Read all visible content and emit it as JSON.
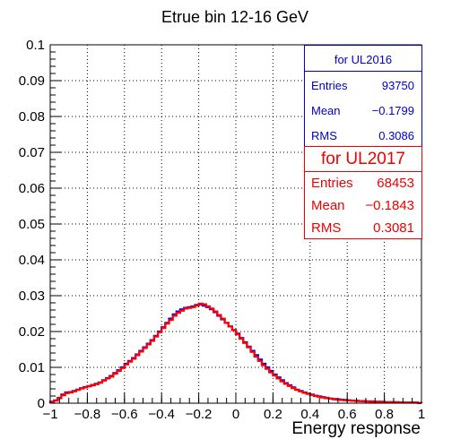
{
  "chart_data": {
    "type": "histogram",
    "title": "Etrue bin 12-16 GeV",
    "xlabel": "Energy response",
    "ylabel": "",
    "xlim": [
      -1,
      1
    ],
    "ylim": [
      0,
      0.1
    ],
    "grid": true,
    "x_ticks": [
      -1,
      -0.8,
      -0.6,
      -0.4,
      -0.2,
      0,
      0.2,
      0.4,
      0.6,
      0.8,
      1
    ],
    "x_tick_labels": [
      "−1",
      "−0.8",
      "−0.6",
      "−0.4",
      "−0.2",
      "0",
      "0.2",
      "0.4",
      "0.6",
      "0.8",
      "1"
    ],
    "y_ticks": [
      0,
      0.01,
      0.02,
      0.03,
      0.04,
      0.05,
      0.06,
      0.07,
      0.08,
      0.09,
      0.1
    ],
    "y_tick_labels": [
      "0",
      "0.01",
      "0.02",
      "0.03",
      "0.04",
      "0.05",
      "0.06",
      "0.07",
      "0.08",
      "0.09",
      "0.1"
    ],
    "bin_edges_range": [
      -1,
      1
    ],
    "n_bins": 100,
    "series": [
      {
        "name": "for UL2016",
        "color": "#0000ee",
        "values": [
          0.0004,
          0.0008,
          0.0014,
          0.0024,
          0.003,
          0.0031,
          0.0034,
          0.0038,
          0.0042,
          0.0045,
          0.0048,
          0.005,
          0.0054,
          0.0058,
          0.0064,
          0.007,
          0.0076,
          0.0084,
          0.0092,
          0.01,
          0.011,
          0.0118,
          0.0126,
          0.0136,
          0.0146,
          0.0156,
          0.0166,
          0.0176,
          0.0188,
          0.02,
          0.0212,
          0.0224,
          0.0236,
          0.0248,
          0.0256,
          0.0262,
          0.0266,
          0.0268,
          0.027,
          0.0274,
          0.0276,
          0.0272,
          0.0268,
          0.0262,
          0.0254,
          0.0244,
          0.0234,
          0.0224,
          0.0214,
          0.0204,
          0.0194,
          0.0182,
          0.017,
          0.0158,
          0.0146,
          0.0134,
          0.0122,
          0.011,
          0.01,
          0.009,
          0.008,
          0.0072,
          0.0064,
          0.0056,
          0.005,
          0.0044,
          0.0038,
          0.0034,
          0.003,
          0.0027,
          0.0024,
          0.0021,
          0.0019,
          0.0017,
          0.0015,
          0.0013,
          0.0012,
          0.0011,
          0.001,
          0.0009,
          0.0008,
          0.0007,
          0.0007,
          0.0006,
          0.0006,
          0.0005,
          0.0005,
          0.0004,
          0.0004,
          0.0004,
          0.0003,
          0.0003,
          0.0003,
          0.0003,
          0.0002,
          0.0002,
          0.0002,
          0.0002,
          0.0002,
          0.0001
        ]
      },
      {
        "name": "for UL2017",
        "color": "#ff0000",
        "values": [
          0.0003,
          0.0007,
          0.0015,
          0.0022,
          0.0028,
          0.003,
          0.0033,
          0.0037,
          0.0041,
          0.0044,
          0.0047,
          0.0051,
          0.0053,
          0.0057,
          0.0063,
          0.0069,
          0.0074,
          0.0082,
          0.009,
          0.0098,
          0.0108,
          0.0116,
          0.0124,
          0.0134,
          0.0144,
          0.0154,
          0.0164,
          0.0174,
          0.0186,
          0.0198,
          0.021,
          0.0222,
          0.0232,
          0.0244,
          0.0252,
          0.0258,
          0.0264,
          0.0266,
          0.0268,
          0.0272,
          0.0278,
          0.0276,
          0.027,
          0.0264,
          0.0256,
          0.0246,
          0.0236,
          0.0224,
          0.0214,
          0.0204,
          0.0192,
          0.018,
          0.0168,
          0.0156,
          0.0143,
          0.013,
          0.0118,
          0.0106,
          0.0096,
          0.0086,
          0.0077,
          0.0069,
          0.0061,
          0.0054,
          0.0048,
          0.0042,
          0.0037,
          0.0033,
          0.0029,
          0.0026,
          0.0023,
          0.002,
          0.0018,
          0.0016,
          0.0014,
          0.0013,
          0.0011,
          0.001,
          0.0009,
          0.0008,
          0.0008,
          0.0007,
          0.0006,
          0.0006,
          0.0005,
          0.0005,
          0.0004,
          0.0004,
          0.0004,
          0.0003,
          0.0003,
          0.0003,
          0.0003,
          0.0002,
          0.0002,
          0.0002,
          0.0002,
          0.0002,
          0.0002,
          0.0001
        ]
      }
    ],
    "stats_boxes": [
      {
        "title": "for UL2016",
        "color": "#0000cc",
        "entries_label": "Entries",
        "entries": "93750",
        "mean_label": "Mean",
        "mean": "−0.1799",
        "rms_label": "RMS",
        "rms": "0.3086"
      },
      {
        "title": "for UL2017",
        "color": "#ee0000",
        "entries_label": "Entries",
        "entries": "68453",
        "mean_label": "Mean",
        "mean": "−0.1843",
        "rms_label": "RMS",
        "rms": "0.3081"
      }
    ]
  }
}
